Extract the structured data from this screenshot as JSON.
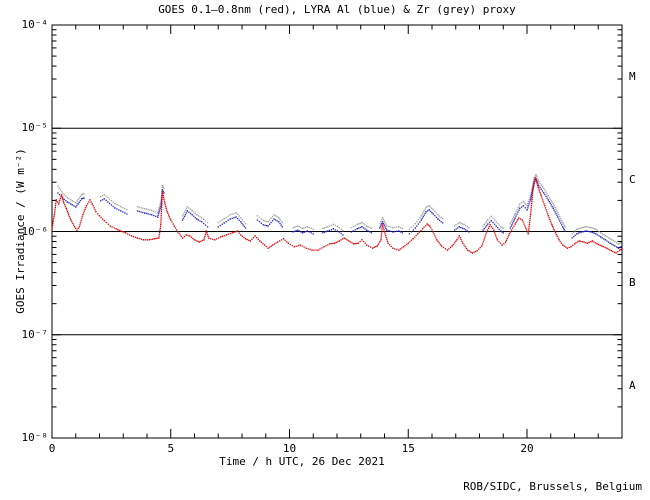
{
  "page": {
    "credit": "ROB/SIDC, Brussels, Belgium"
  },
  "chart_data": {
    "type": "scatter",
    "title": "GOES 0.1–0.8nm (red), LYRA Al (blue) & Zr (grey) proxy",
    "xlabel": "Time / h UTC, 26 Dec 2021",
    "ylabel": "GOES Irradiance / (W m⁻²)",
    "x_range_hours": [
      0,
      24
    ],
    "y_range": [
      1e-08,
      0.0001
    ],
    "y_scale": "log",
    "grid": false,
    "legend_position": "none",
    "axis_color": "#000000",
    "hlines": [
      1e-05,
      1e-06,
      1e-07
    ],
    "x_major_ticks": [
      0,
      5,
      10,
      15,
      20
    ],
    "x_minor_step_hours": 1,
    "y_tick_labels": [
      {
        "label": "10⁻⁴",
        "value": 0.0001
      },
      {
        "label": "10⁻⁵",
        "value": 1e-05
      },
      {
        "label": "10⁻⁶",
        "value": 1e-06
      },
      {
        "label": "10⁻⁷",
        "value": 1e-07
      },
      {
        "label": "10⁻⁸",
        "value": 1e-08
      }
    ],
    "flare_classes": [
      {
        "label": "M",
        "value": 3.16e-05
      },
      {
        "label": "C",
        "value": 3.16e-06
      },
      {
        "label": "B",
        "value": 3.16e-07
      },
      {
        "label": "A",
        "value": 3.16e-08
      }
    ],
    "series": [
      {
        "name": "GOES 0.1-0.8nm",
        "color": "#e00000",
        "style": "dotted",
        "points": [
          [
            0.0,
            1.06e-06
          ],
          [
            0.1,
            1.45e-06
          ],
          [
            0.18,
            2.02e-06
          ],
          [
            0.28,
            1.85e-06
          ],
          [
            0.4,
            2.26e-06
          ],
          [
            0.5,
            1.89e-06
          ],
          [
            0.6,
            1.68e-06
          ],
          [
            0.7,
            1.45e-06
          ],
          [
            0.8,
            1.29e-06
          ],
          [
            0.95,
            1.11e-06
          ],
          [
            1.05,
            1.03e-06
          ],
          [
            1.15,
            1.11e-06
          ],
          [
            1.3,
            1.45e-06
          ],
          [
            1.45,
            1.77e-06
          ],
          [
            1.6,
            2.02e-06
          ],
          [
            1.7,
            1.85e-06
          ],
          [
            1.85,
            1.55e-06
          ],
          [
            2.0,
            1.42e-06
          ],
          [
            2.2,
            1.27e-06
          ],
          [
            2.45,
            1.13e-06
          ],
          [
            2.7,
            1.06e-06
          ],
          [
            2.9,
            1.01e-06
          ],
          [
            3.1,
            9.7e-07
          ],
          [
            3.35,
            9.05e-07
          ],
          [
            3.6,
            8.65e-07
          ],
          [
            3.85,
            8.3e-07
          ],
          [
            4.1,
            8.3e-07
          ],
          [
            4.3,
            8.5e-07
          ],
          [
            4.5,
            8.65e-07
          ],
          [
            4.58,
            1.16e-06
          ],
          [
            4.65,
            2.41e-06
          ],
          [
            4.75,
            1.89e-06
          ],
          [
            4.85,
            1.55e-06
          ],
          [
            5.0,
            1.29e-06
          ],
          [
            5.15,
            1.13e-06
          ],
          [
            5.3,
            9.9e-07
          ],
          [
            5.5,
            8.65e-07
          ],
          [
            5.65,
            9.25e-07
          ],
          [
            5.8,
            9.05e-07
          ],
          [
            6.0,
            8.3e-07
          ],
          [
            6.2,
            7.9e-07
          ],
          [
            6.4,
            8.3e-07
          ],
          [
            6.5,
            1.01e-06
          ],
          [
            6.6,
            8.65e-07
          ],
          [
            6.85,
            8.3e-07
          ],
          [
            7.1,
            8.85e-07
          ],
          [
            7.35,
            9.25e-07
          ],
          [
            7.6,
            9.7e-07
          ],
          [
            7.8,
            1.01e-06
          ],
          [
            7.95,
            9.25e-07
          ],
          [
            8.15,
            8.5e-07
          ],
          [
            8.35,
            8.1e-07
          ],
          [
            8.55,
            9.05e-07
          ],
          [
            8.75,
            8.1e-07
          ],
          [
            8.95,
            7.4e-07
          ],
          [
            9.1,
            6.9e-07
          ],
          [
            9.3,
            7.4e-07
          ],
          [
            9.5,
            7.9e-07
          ],
          [
            9.75,
            8.5e-07
          ],
          [
            9.95,
            7.7e-07
          ],
          [
            10.2,
            7.1e-07
          ],
          [
            10.45,
            7.4e-07
          ],
          [
            10.7,
            6.9e-07
          ],
          [
            10.95,
            6.6e-07
          ],
          [
            11.2,
            6.6e-07
          ],
          [
            11.45,
            7.1e-07
          ],
          [
            11.7,
            7.6e-07
          ],
          [
            11.9,
            7.7e-07
          ],
          [
            12.1,
            8.1e-07
          ],
          [
            12.3,
            8.65e-07
          ],
          [
            12.5,
            8.1e-07
          ],
          [
            12.7,
            7.6e-07
          ],
          [
            12.9,
            7.7e-07
          ],
          [
            13.05,
            8.3e-07
          ],
          [
            13.25,
            7.4e-07
          ],
          [
            13.5,
            6.9e-07
          ],
          [
            13.7,
            7.25e-07
          ],
          [
            13.85,
            8.3e-07
          ],
          [
            13.92,
            1.18e-06
          ],
          [
            14.0,
            9.9e-07
          ],
          [
            14.15,
            7.7e-07
          ],
          [
            14.35,
            6.9e-07
          ],
          [
            14.6,
            6.6e-07
          ],
          [
            14.8,
            7.1e-07
          ],
          [
            15.0,
            7.7e-07
          ],
          [
            15.2,
            8.5e-07
          ],
          [
            15.4,
            9.5e-07
          ],
          [
            15.6,
            1.06e-06
          ],
          [
            15.8,
            1.18e-06
          ],
          [
            15.9,
            1.13e-06
          ],
          [
            16.05,
            9.9e-07
          ],
          [
            16.2,
            8.3e-07
          ],
          [
            16.4,
            7.25e-07
          ],
          [
            16.65,
            6.6e-07
          ],
          [
            16.85,
            7.25e-07
          ],
          [
            17.05,
            8.3e-07
          ],
          [
            17.15,
            9.05e-07
          ],
          [
            17.3,
            7.7e-07
          ],
          [
            17.5,
            6.6e-07
          ],
          [
            17.7,
            6.2e-07
          ],
          [
            17.9,
            6.5e-07
          ],
          [
            18.1,
            7.25e-07
          ],
          [
            18.3,
            9.9e-07
          ],
          [
            18.45,
            1.16e-06
          ],
          [
            18.6,
            1.03e-06
          ],
          [
            18.75,
            8.3e-07
          ],
          [
            18.95,
            7.4e-07
          ],
          [
            19.1,
            7.9e-07
          ],
          [
            19.3,
            9.9e-07
          ],
          [
            19.5,
            1.18e-06
          ],
          [
            19.65,
            1.35e-06
          ],
          [
            19.8,
            1.29e-06
          ],
          [
            19.95,
            1.08e-06
          ],
          [
            20.05,
            9.5e-07
          ],
          [
            20.15,
            1.45e-06
          ],
          [
            20.25,
            2.52e-06
          ],
          [
            20.35,
            3.3e-06
          ],
          [
            20.45,
            2.77e-06
          ],
          [
            20.6,
            2.21e-06
          ],
          [
            20.75,
            1.77e-06
          ],
          [
            20.9,
            1.42e-06
          ],
          [
            21.05,
            1.16e-06
          ],
          [
            21.2,
            9.7e-07
          ],
          [
            21.35,
            8.3e-07
          ],
          [
            21.5,
            7.4e-07
          ],
          [
            21.7,
            6.9e-07
          ],
          [
            21.85,
            7.1e-07
          ],
          [
            22.0,
            7.6e-07
          ],
          [
            22.2,
            8.1e-07
          ],
          [
            22.4,
            7.9e-07
          ],
          [
            22.55,
            7.7e-07
          ],
          [
            22.75,
            8.1e-07
          ],
          [
            22.95,
            7.6e-07
          ],
          [
            23.15,
            7.25e-07
          ],
          [
            23.35,
            6.9e-07
          ],
          [
            23.55,
            6.5e-07
          ],
          [
            23.75,
            6.2e-07
          ],
          [
            23.9,
            6.6e-07
          ],
          [
            24.0,
            6.8e-07
          ]
        ]
      },
      {
        "name": "LYRA Al proxy",
        "color": "#2020cc",
        "style": "dotted",
        "value_index": 1,
        "segments_format": "[hour, al_value, zr_value]",
        "segments": []
      },
      {
        "name": "LYRA Zr proxy",
        "color": "#a0a0a0",
        "style": "dotted",
        "value_index": 2,
        "segments_format": "[hour, al_value, zr_value]",
        "segments": []
      }
    ],
    "lyra_segments": [
      [
        [
          0.25,
          2.36e-06,
          2.75e-06
        ],
        [
          0.45,
          2.11e-06,
          2.35e-06
        ],
        [
          0.65,
          1.93e-06,
          2.12e-06
        ],
        [
          0.85,
          1.81e-06,
          1.99e-06
        ],
        [
          1.0,
          1.73e-06,
          1.9e-06
        ],
        [
          1.1,
          1.85e-06,
          2.04e-06
        ],
        [
          1.25,
          2.07e-06,
          2.28e-06
        ],
        [
          1.35,
          2.11e-06,
          2.32e-06
        ]
      ],
      [
        [
          2.05,
          1.98e-06,
          2.18e-06
        ],
        [
          2.2,
          2.07e-06,
          2.28e-06
        ],
        [
          2.65,
          1.69e-06,
          1.86e-06
        ],
        [
          2.9,
          1.58e-06,
          1.74e-06
        ],
        [
          3.15,
          1.48e-06,
          1.63e-06
        ]
      ],
      [
        [
          3.6,
          1.58e-06,
          1.74e-06
        ],
        [
          3.9,
          1.51e-06,
          1.66e-06
        ],
        [
          4.2,
          1.45e-06,
          1.6e-06
        ],
        [
          4.45,
          1.38e-06,
          1.52e-06
        ],
        [
          4.6,
          1.81e-06,
          1.99e-06
        ],
        [
          4.65,
          2.52e-06,
          2.77e-06
        ],
        [
          4.72,
          2.37e-06,
          2.61e-06
        ]
      ],
      [
        [
          5.5,
          1.29e-06,
          1.42e-06
        ],
        [
          5.7,
          1.58e-06,
          1.74e-06
        ],
        [
          5.9,
          1.45e-06,
          1.6e-06
        ],
        [
          6.1,
          1.32e-06,
          1.45e-06
        ],
        [
          6.3,
          1.24e-06,
          1.36e-06
        ],
        [
          6.55,
          1.11e-06,
          1.22e-06
        ]
      ],
      [
        [
          7.0,
          1.11e-06,
          1.22e-06
        ],
        [
          7.25,
          1.21e-06,
          1.33e-06
        ],
        [
          7.5,
          1.32e-06,
          1.45e-06
        ],
        [
          7.75,
          1.38e-06,
          1.52e-06
        ],
        [
          7.95,
          1.24e-06,
          1.36e-06
        ],
        [
          8.15,
          1.08e-06,
          1.19e-06
        ]
      ],
      [
        [
          8.65,
          1.29e-06,
          1.42e-06
        ],
        [
          8.9,
          1.16e-06,
          1.28e-06
        ],
        [
          9.1,
          1.13e-06,
          1.24e-06
        ],
        [
          9.35,
          1.32e-06,
          1.45e-06
        ],
        [
          9.55,
          1.24e-06,
          1.36e-06
        ],
        [
          9.7,
          1.11e-06,
          1.22e-06
        ]
      ],
      [
        [
          10.15,
          9.9e-07,
          1.09e-06
        ],
        [
          10.35,
          1.03e-06,
          1.13e-06
        ],
        [
          10.55,
          9.7e-07,
          1.07e-06
        ],
        [
          10.75,
          1.01e-06,
          1.11e-06
        ],
        [
          11.0,
          9.5e-07,
          1.05e-06
        ]
      ],
      [
        [
          11.4,
          9.7e-07,
          1.07e-06
        ],
        [
          11.6,
          1.01e-06,
          1.11e-06
        ],
        [
          11.85,
          1.06e-06,
          1.17e-06
        ],
        [
          12.1,
          9.9e-07,
          1.09e-06
        ],
        [
          12.25,
          9.25e-07,
          1.02e-06
        ]
      ],
      [
        [
          12.6,
          9.9e-07,
          1.09e-06
        ],
        [
          12.85,
          1.06e-06,
          1.17e-06
        ],
        [
          13.05,
          1.11e-06,
          1.22e-06
        ],
        [
          13.25,
          1.03e-06,
          1.13e-06
        ],
        [
          13.45,
          9.7e-07,
          1.07e-06
        ]
      ],
      [
        [
          13.8,
          1.08e-06,
          1.19e-06
        ],
        [
          13.92,
          1.24e-06,
          1.36e-06
        ],
        [
          14.1,
          1.03e-06,
          1.13e-06
        ],
        [
          14.35,
          9.9e-07,
          1.09e-06
        ],
        [
          14.6,
          1.01e-06,
          1.11e-06
        ],
        [
          14.75,
          9.7e-07,
          1.07e-06
        ]
      ],
      [
        [
          15.05,
          9.5e-07,
          1.05e-06
        ],
        [
          15.3,
          1.08e-06,
          1.19e-06
        ],
        [
          15.55,
          1.29e-06,
          1.42e-06
        ],
        [
          15.75,
          1.55e-06,
          1.71e-06
        ],
        [
          15.88,
          1.62e-06,
          1.78e-06
        ],
        [
          16.05,
          1.48e-06,
          1.63e-06
        ],
        [
          16.25,
          1.32e-06,
          1.45e-06
        ],
        [
          16.45,
          1.21e-06,
          1.33e-06
        ]
      ],
      [
        [
          16.95,
          1.03e-06,
          1.13e-06
        ],
        [
          17.15,
          1.11e-06,
          1.22e-06
        ],
        [
          17.35,
          1.06e-06,
          1.17e-06
        ],
        [
          17.55,
          9.9e-07,
          1.09e-06
        ]
      ],
      [
        [
          18.15,
          1.03e-06,
          1.13e-06
        ],
        [
          18.35,
          1.18e-06,
          1.3e-06
        ],
        [
          18.5,
          1.27e-06,
          1.4e-06
        ],
        [
          18.7,
          1.13e-06,
          1.24e-06
        ],
        [
          18.9,
          1.01e-06,
          1.11e-06
        ],
        [
          19.0,
          9.7e-07,
          1.07e-06
        ]
      ],
      [
        [
          19.3,
          1.08e-06,
          1.19e-06
        ],
        [
          19.5,
          1.35e-06,
          1.49e-06
        ],
        [
          19.7,
          1.68e-06,
          1.85e-06
        ],
        [
          19.85,
          1.77e-06,
          1.95e-06
        ],
        [
          20.0,
          1.62e-06,
          1.78e-06
        ],
        [
          20.15,
          2.02e-06,
          2.22e-06
        ],
        [
          20.3,
          3.02e-06,
          3.32e-06
        ],
        [
          20.38,
          3.23e-06,
          3.55e-06
        ],
        [
          20.5,
          2.77e-06,
          3.05e-06
        ],
        [
          20.7,
          2.37e-06,
          2.61e-06
        ],
        [
          20.9,
          2.02e-06,
          2.22e-06
        ],
        [
          21.1,
          1.68e-06,
          1.85e-06
        ],
        [
          21.3,
          1.38e-06,
          1.52e-06
        ],
        [
          21.5,
          1.11e-06,
          1.22e-06
        ],
        [
          21.6,
          1.01e-06,
          1.11e-06
        ]
      ],
      [
        [
          21.9,
          8.65e-07,
          9.5e-07
        ],
        [
          22.1,
          9.5e-07,
          1.05e-06
        ],
        [
          22.3,
          9.9e-07,
          1.09e-06
        ],
        [
          22.5,
          1.01e-06,
          1.11e-06
        ],
        [
          22.7,
          9.9e-07,
          1.09e-06
        ],
        [
          22.9,
          9.5e-07,
          1.05e-06
        ],
        [
          23.1,
          8.85e-07,
          9.7e-07
        ],
        [
          23.3,
          8.3e-07,
          9.1e-07
        ],
        [
          23.5,
          7.7e-07,
          8.5e-07
        ],
        [
          23.7,
          7.25e-07,
          8e-07
        ],
        [
          23.85,
          6.9e-07,
          7.6e-07
        ],
        [
          23.95,
          7.1e-07,
          7.8e-07
        ]
      ]
    ]
  }
}
